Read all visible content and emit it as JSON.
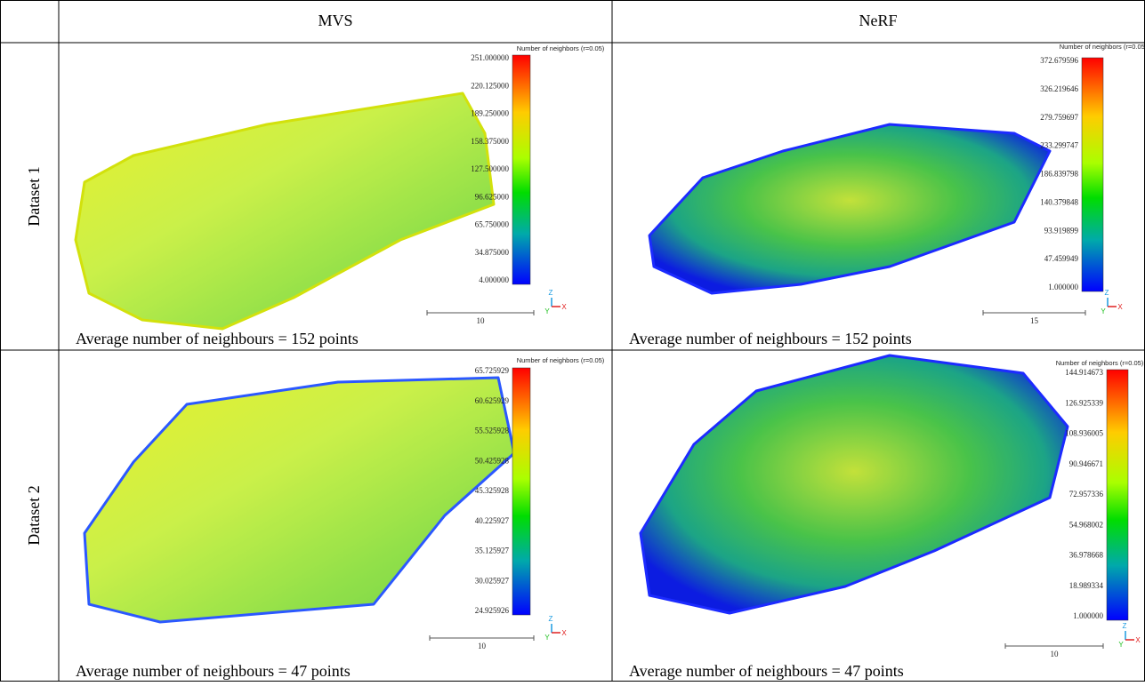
{
  "header": {
    "columns": [
      "MVS",
      "NeRF"
    ]
  },
  "rows": [
    {
      "label": "Dataset 1",
      "cells": [
        {
          "colorbar_title": "Number of neighbors (r=0.05)",
          "colorbar_ticks": [
            "251.000000",
            "220.125000",
            "189.250000",
            "158.375000",
            "127.500000",
            "96.625000",
            "65.750000",
            "34.875000",
            "4.000000"
          ],
          "scale_label": "10",
          "axes": [
            "Z",
            "Y",
            "X"
          ],
          "caption": "Average number of neighbours = 152 points"
        },
        {
          "colorbar_title": "Number of neighbors (r=0.05)",
          "colorbar_ticks": [
            "372.679596",
            "326.219646",
            "279.759697",
            "233.299747",
            "186.839798",
            "140.379848",
            "93.919899",
            "47.459949",
            "1.000000"
          ],
          "scale_label": "15",
          "axes": [
            "Z",
            "Y",
            "X"
          ],
          "caption": "Average number of neighbours = 152 points"
        }
      ]
    },
    {
      "label": "Dataset 2",
      "cells": [
        {
          "colorbar_title": "Number of neighbors (r=0.05)",
          "colorbar_ticks": [
            "65.725929",
            "60.625929",
            "55.525928",
            "50.425928",
            "45.325928",
            "40.225927",
            "35.125927",
            "30.025927",
            "24.925926"
          ],
          "scale_label": "10",
          "axes": [
            "Z",
            "Y",
            "X"
          ],
          "caption": "Average number of neighbours = 47 points"
        },
        {
          "colorbar_title": "Number of neighbors (r=0.05)",
          "colorbar_ticks": [
            "144.914673",
            "126.925339",
            "108.936005",
            "90.946671",
            "72.957336",
            "54.968002",
            "36.978668",
            "18.989334",
            "1.000000"
          ],
          "scale_label": "10",
          "axes": [
            "Z",
            "Y",
            "X"
          ],
          "caption": "Average number of neighbours = 47 points"
        }
      ]
    }
  ]
}
